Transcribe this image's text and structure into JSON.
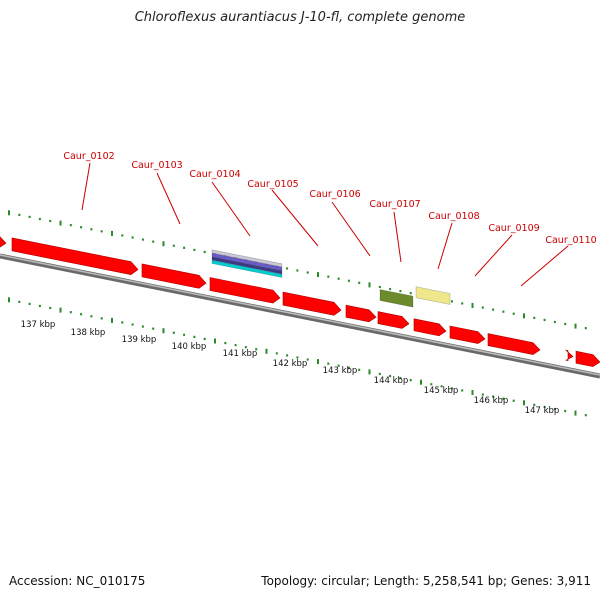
{
  "title": "Chloroflexus aurantiacus J-10-fl, complete genome",
  "footer": {
    "accession_label": "Accession:",
    "accession": "NC_010175",
    "topology_label": "Topology:",
    "topology": "circular",
    "length_label": "Length:",
    "length": "5,258,541 bp",
    "genes_label": "Genes:",
    "genes": "3,911"
  },
  "colors": {
    "background": "#ffffff",
    "cds": "#ff0000",
    "tick": "#2a8a2a",
    "backbone": "#888888",
    "label": "#cc0000",
    "feature_olive": "#6e8b2c",
    "feature_khaki": "#f0e68c",
    "feature_stack": [
      "#c8c8d8",
      "#6a5acd",
      "#3a3a8a",
      "#00ced1"
    ]
  },
  "gene_labels": [
    "Caur_0102",
    "Caur_0103",
    "Caur_0104",
    "Caur_0105",
    "Caur_0106",
    "Caur_0107",
    "Caur_0108",
    "Caur_0109",
    "Caur_0110"
  ],
  "scale_labels": [
    "137 kbp",
    "138 kbp",
    "139 kbp",
    "140 kbp",
    "141 kbp",
    "142 kbp",
    "143 kbp",
    "144 kbp",
    "145 kbp",
    "146 kbp",
    "147 kbp"
  ]
}
